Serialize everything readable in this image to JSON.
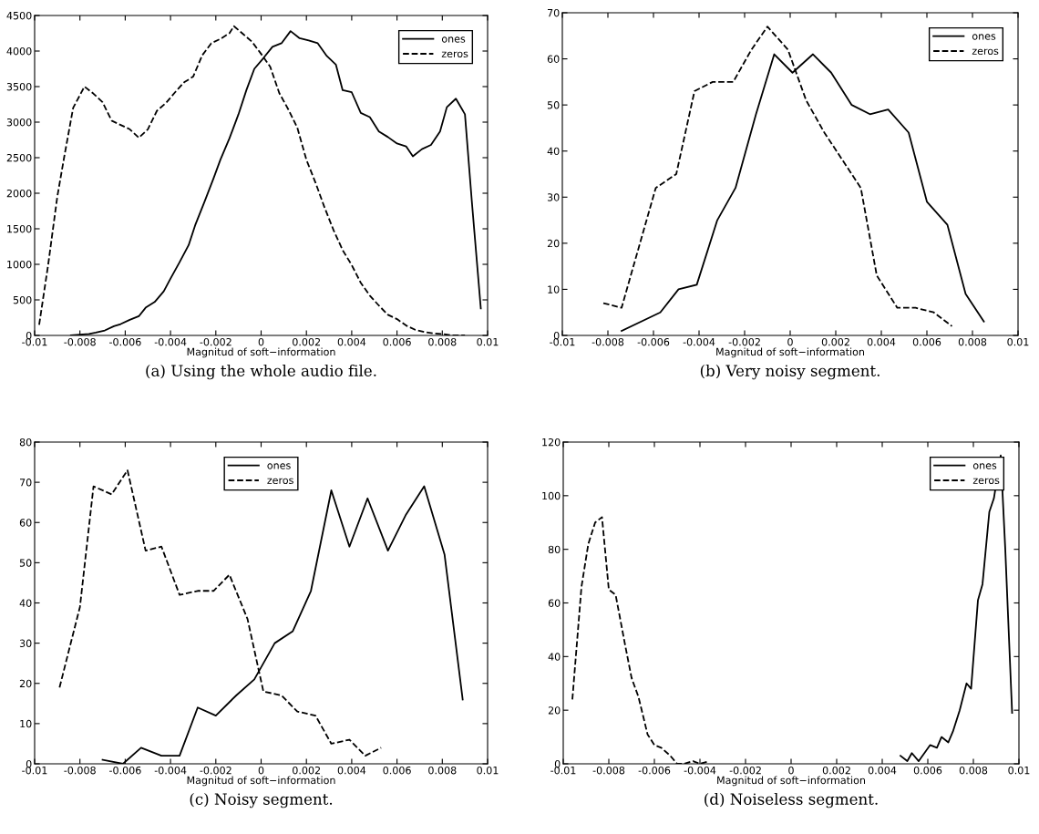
{
  "chart_data": [
    {
      "type": "line",
      "xlabel": "Magnitud of soft−information",
      "annotations": [
        "(a) Using the whole audio file."
      ],
      "legend": "top right",
      "grid": false,
      "xlim": [
        -0.01,
        0.01
      ],
      "xticks": [
        -0.01,
        -0.008,
        -0.006,
        -0.004,
        -0.002,
        0,
        0.002,
        0.004,
        0.006,
        0.008,
        0.01
      ],
      "ylim": [
        0,
        4500
      ],
      "yticks": [
        0,
        500,
        1000,
        1500,
        2000,
        2500,
        3000,
        3500,
        4000,
        4500
      ],
      "series": [
        {
          "name": "ones",
          "color": "#000000",
          "line_style": "solid",
          "x": [
            -0.0084,
            -0.008,
            -0.0076,
            -0.0073,
            -0.0069,
            -0.0065,
            -0.0062,
            -0.0058,
            -0.0054,
            -0.0051,
            -0.0047,
            -0.0043,
            -0.004,
            -0.0036,
            -0.0032,
            -0.0029,
            -0.0025,
            -0.0021,
            -0.0018,
            -0.0014,
            -0.001,
            -0.00065,
            -0.0003,
            0.0001,
            0.0005,
            0.0009,
            0.0013,
            0.0017,
            0.0021,
            0.0025,
            0.0029,
            0.0033,
            0.0036,
            0.004,
            0.0044,
            0.0048,
            0.0052,
            0.0056,
            0.006,
            0.0064,
            0.0067,
            0.0071,
            0.0075,
            0.0079,
            0.0082,
            0.0086,
            0.009,
            0.0093,
            0.0097
          ],
          "values": [
            0,
            10,
            20,
            40,
            70,
            130,
            160,
            220,
            270,
            390,
            470,
            620,
            800,
            1030,
            1270,
            1560,
            1880,
            2210,
            2470,
            2770,
            3110,
            3450,
            3750,
            3900,
            4060,
            4110,
            4280,
            4180,
            4150,
            4110,
            3930,
            3810,
            3450,
            3420,
            3130,
            3070,
            2870,
            2790,
            2700,
            2660,
            2520,
            2620,
            2680,
            2870,
            3210,
            3330,
            3110,
            1900,
            380
          ]
        },
        {
          "name": "zeros",
          "color": "#000000",
          "line_style": "dashed",
          "x": [
            -0.0098,
            -0.0094,
            -0.009,
            -0.0087,
            -0.0083,
            -0.0078,
            -0.0074,
            -0.007,
            -0.0066,
            -0.0062,
            -0.0058,
            -0.0054,
            -0.005,
            -0.0046,
            -0.0042,
            -0.0038,
            -0.0034,
            -0.003,
            -0.0026,
            -0.0022,
            -0.0018,
            -0.0014,
            -0.0012,
            -0.0008,
            -0.0004,
            0.0,
            0.0004,
            0.0008,
            0.0012,
            0.0016,
            0.002,
            0.0024,
            0.0028,
            0.0032,
            0.0036,
            0.004,
            0.0044,
            0.0048,
            0.0052,
            0.0056,
            0.006,
            0.0064,
            0.0068,
            0.0072,
            0.0076,
            0.008,
            0.0084,
            0.009
          ],
          "values": [
            150,
            1000,
            1950,
            2500,
            3200,
            3500,
            3400,
            3280,
            3020,
            2960,
            2900,
            2780,
            2900,
            3160,
            3270,
            3420,
            3560,
            3640,
            3940,
            4110,
            4170,
            4250,
            4350,
            4240,
            4130,
            3960,
            3780,
            3410,
            3180,
            2920,
            2470,
            2150,
            1800,
            1480,
            1200,
            990,
            740,
            560,
            420,
            290,
            230,
            140,
            80,
            50,
            30,
            20,
            0,
            0
          ]
        }
      ]
    },
    {
      "type": "line",
      "xlabel": "Magnitud of soft−information",
      "annotations": [
        "(b) Very noisy segment."
      ],
      "legend": "top right",
      "grid": false,
      "xlim": [
        -0.01,
        0.01
      ],
      "xticks": [
        -0.01,
        -0.008,
        -0.006,
        -0.004,
        -0.002,
        0,
        0.002,
        0.004,
        0.006,
        0.008,
        0.01
      ],
      "ylim": [
        0,
        70
      ],
      "yticks": [
        0,
        10,
        20,
        30,
        40,
        50,
        60,
        70
      ],
      "series": [
        {
          "name": "ones",
          "color": "#000000",
          "line_style": "solid",
          "x": [
            -0.0074,
            -0.0057,
            -0.0049,
            -0.0041,
            -0.0032,
            -0.0024,
            -0.0015,
            -0.0007,
            0.0001,
            0.001,
            0.0018,
            0.0027,
            0.0035,
            0.0043,
            0.0052,
            0.006,
            0.0069,
            0.0077,
            0.0085
          ],
          "values": [
            1,
            5,
            10,
            11,
            25,
            32,
            48,
            61,
            57,
            61,
            57,
            50,
            48,
            49,
            44,
            29,
            24,
            9,
            3
          ]
        },
        {
          "name": "zeros",
          "color": "#000000",
          "line_style": "dashed",
          "x": [
            -0.0082,
            -0.0074,
            -0.0059,
            -0.005,
            -0.0042,
            -0.0034,
            -0.0025,
            -0.0017,
            -0.001,
            -0.0001,
            0.0007,
            0.0015,
            0.0023,
            0.0031,
            0.0038,
            0.0047,
            0.0055,
            0.0063,
            0.0071
          ],
          "values": [
            7,
            6,
            32,
            35,
            53,
            55,
            55,
            62,
            67,
            62,
            51,
            44,
            38,
            32,
            13,
            6,
            6,
            5,
            2
          ]
        }
      ]
    },
    {
      "type": "line",
      "xlabel": "Magnitud of soft−information",
      "annotations": [
        "(c) Noisy segment."
      ],
      "legend": "top",
      "grid": false,
      "xlim": [
        -0.01,
        0.01
      ],
      "xticks": [
        -0.01,
        -0.008,
        -0.006,
        -0.004,
        -0.002,
        0,
        0.002,
        0.004,
        0.006,
        0.008,
        0.01
      ],
      "ylim": [
        0,
        80
      ],
      "yticks": [
        0,
        10,
        20,
        30,
        40,
        50,
        60,
        70,
        80
      ],
      "series": [
        {
          "name": "ones",
          "color": "#000000",
          "line_style": "solid",
          "x": [
            -0.007,
            -0.0061,
            -0.0053,
            -0.0044,
            -0.0036,
            -0.0028,
            -0.002,
            -0.0011,
            -0.0003,
            0.0006,
            0.0014,
            0.0022,
            0.0031,
            0.0039,
            0.0047,
            0.0056,
            0.0064,
            0.0072,
            0.0081,
            0.0089
          ],
          "values": [
            1,
            0,
            4,
            2,
            2,
            14,
            12,
            17,
            21,
            30,
            33,
            43,
            68,
            54,
            66,
            53,
            62,
            69,
            52,
            16
          ]
        },
        {
          "name": "zeros",
          "color": "#000000",
          "line_style": "dashed",
          "x": [
            -0.0089,
            -0.008,
            -0.0074,
            -0.0066,
            -0.0059,
            -0.0051,
            -0.0044,
            -0.0036,
            -0.0028,
            -0.0021,
            -0.0014,
            -0.0006,
            0.0001,
            0.0009,
            0.0016,
            0.0024,
            0.0031,
            0.0039,
            0.0046,
            0.0053
          ],
          "values": [
            19,
            39,
            69,
            67,
            73,
            53,
            54,
            42,
            43,
            43,
            47,
            36,
            18,
            17,
            13,
            12,
            5,
            6,
            2,
            4
          ]
        }
      ]
    },
    {
      "type": "line",
      "xlabel": "Magnitud of soft−information",
      "annotations": [
        "(d) Noiseless segment."
      ],
      "legend": "top right",
      "grid": false,
      "xlim": [
        -0.01,
        0.01
      ],
      "xticks": [
        -0.01,
        -0.008,
        -0.006,
        -0.004,
        -0.002,
        0,
        0.002,
        0.004,
        0.006,
        0.008,
        0.01
      ],
      "ylim": [
        0,
        120
      ],
      "yticks": [
        0,
        20,
        40,
        60,
        80,
        100,
        120
      ],
      "series": [
        {
          "name": "ones",
          "color": "#000000",
          "line_style": "solid",
          "x": [
            0.0048,
            0.0051,
            0.0053,
            0.0056,
            0.0061,
            0.0064,
            0.0066,
            0.0069,
            0.0071,
            0.0074,
            0.0077,
            0.0079,
            0.0082,
            0.0084,
            0.0087,
            0.0089,
            0.0092,
            0.0094,
            0.0097
          ],
          "values": [
            3,
            1,
            4,
            1,
            7,
            6,
            10,
            8,
            12,
            20,
            30,
            28,
            61,
            67,
            94,
            99,
            115,
            80,
            19
          ]
        },
        {
          "name": "zeros",
          "color": "#000000",
          "line_style": "dashed",
          "x": [
            -0.0096,
            -0.0092,
            -0.0089,
            -0.0086,
            -0.0083,
            -0.008,
            -0.0077,
            -0.0073,
            -0.007,
            -0.0067,
            -0.0063,
            -0.006,
            -0.0057,
            -0.0053,
            -0.005,
            -0.0047,
            -0.0043,
            -0.004,
            -0.0036
          ],
          "values": [
            24,
            66,
            82,
            90,
            92,
            65,
            63,
            45,
            32,
            25,
            11,
            7,
            6,
            3,
            0,
            0,
            1,
            0,
            1
          ]
        }
      ]
    }
  ]
}
